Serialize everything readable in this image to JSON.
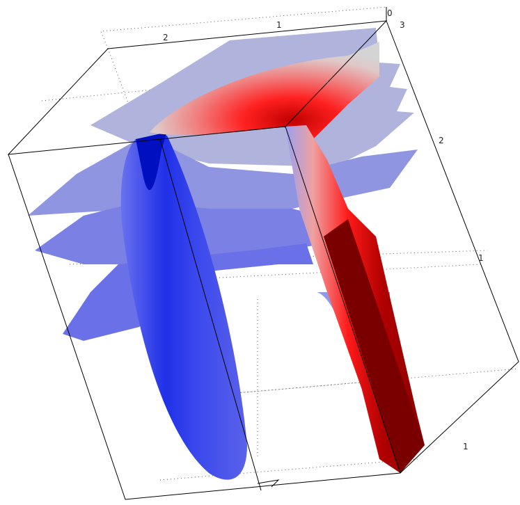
{
  "axes": {
    "top_ticks": [
      "2",
      "1",
      "0"
    ],
    "right_ticks": [
      "3",
      "2",
      "1"
    ],
    "bottom_right_ticks": [
      "1"
    ]
  }
}
